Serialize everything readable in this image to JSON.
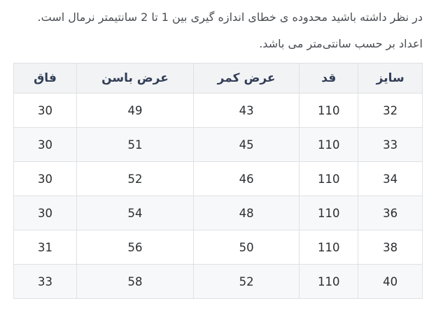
{
  "notes": {
    "line1": "در نظر داشته باشید محدوده ی خطای اندازه گیری بین 1 تا 2 سانتیمتر نرمال است.",
    "line2": "اعداد بر حسب سانتی‌متر می باشد."
  },
  "table": {
    "columns": [
      "سایز",
      "قد",
      "عرض کمر",
      "عرض باسن",
      "فاق"
    ],
    "rows": [
      [
        "32",
        "110",
        "43",
        "49",
        "30"
      ],
      [
        "33",
        "110",
        "45",
        "51",
        "30"
      ],
      [
        "34",
        "110",
        "46",
        "52",
        "30"
      ],
      [
        "36",
        "110",
        "48",
        "54",
        "30"
      ],
      [
        "38",
        "110",
        "50",
        "56",
        "31"
      ],
      [
        "40",
        "110",
        "52",
        "58",
        "33"
      ]
    ]
  },
  "colors": {
    "body-text": "#4a4d52",
    "header-text": "#323e56",
    "cell-text": "#2b2d30",
    "border": "#dfe1e4",
    "header-bg": "#f2f3f5",
    "stripe-bg": "#f7f8f9",
    "page-bg": "#ffffff"
  }
}
